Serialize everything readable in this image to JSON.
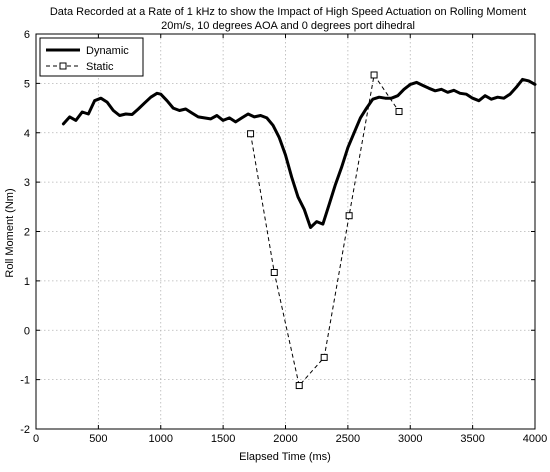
{
  "chart_data": {
    "type": "line",
    "title_lines": [
      "Data Recorded at a Rate of 1 kHz to show the Impact of High Speed Actuation on Rolling Moment",
      "20m/s, 10 degrees AOA and 0 degrees port dihedral"
    ],
    "xlabel": "Elapsed Time (ms)",
    "ylabel": "Roll Moment (Nm)",
    "xlim": [
      0,
      4000
    ],
    "ylim": [
      -2,
      6
    ],
    "xticks": [
      0,
      500,
      1000,
      1500,
      2000,
      2500,
      3000,
      3500,
      4000
    ],
    "yticks": [
      -2,
      -1,
      0,
      1,
      2,
      3,
      4,
      5,
      6
    ],
    "grid": true,
    "legend_position": "top-left",
    "series": [
      {
        "name": "Dynamic",
        "style": "solid-thick",
        "color": "#000000",
        "x": [
          220,
          270,
          320,
          370,
          420,
          470,
          520,
          570,
          620,
          670,
          720,
          770,
          820,
          870,
          920,
          970,
          1000,
          1050,
          1100,
          1150,
          1200,
          1250,
          1300,
          1350,
          1400,
          1450,
          1500,
          1550,
          1600,
          1650,
          1700,
          1750,
          1800,
          1850,
          1900,
          1950,
          2000,
          2050,
          2100,
          2150,
          2200,
          2250,
          2300,
          2350,
          2400,
          2450,
          2500,
          2550,
          2600,
          2650,
          2700,
          2750,
          2800,
          2850,
          2900,
          2950,
          3000,
          3050,
          3100,
          3150,
          3200,
          3250,
          3300,
          3350,
          3400,
          3450,
          3500,
          3550,
          3600,
          3650,
          3700,
          3750,
          3800,
          3850,
          3900,
          3950,
          4000
        ],
        "y": [
          4.18,
          4.32,
          4.25,
          4.42,
          4.38,
          4.65,
          4.7,
          4.62,
          4.45,
          4.35,
          4.38,
          4.37,
          4.48,
          4.6,
          4.72,
          4.8,
          4.78,
          4.65,
          4.5,
          4.45,
          4.48,
          4.4,
          4.32,
          4.3,
          4.28,
          4.35,
          4.25,
          4.3,
          4.22,
          4.3,
          4.38,
          4.32,
          4.35,
          4.3,
          4.15,
          3.9,
          3.55,
          3.1,
          2.7,
          2.45,
          2.08,
          2.2,
          2.15,
          2.55,
          2.95,
          3.3,
          3.7,
          4.0,
          4.3,
          4.5,
          4.68,
          4.72,
          4.7,
          4.7,
          4.75,
          4.88,
          4.98,
          5.02,
          4.96,
          4.9,
          4.85,
          4.88,
          4.82,
          4.86,
          4.8,
          4.78,
          4.7,
          4.65,
          4.75,
          4.68,
          4.72,
          4.7,
          4.78,
          4.92,
          5.08,
          5.05,
          4.98
        ]
      },
      {
        "name": "Static",
        "style": "dashed-square-markers",
        "color": "#000000",
        "x": [
          1720,
          1910,
          2110,
          2310,
          2510,
          2710,
          2910
        ],
        "y": [
          3.98,
          1.17,
          -1.12,
          -0.55,
          2.32,
          5.17,
          4.43
        ]
      }
    ]
  }
}
